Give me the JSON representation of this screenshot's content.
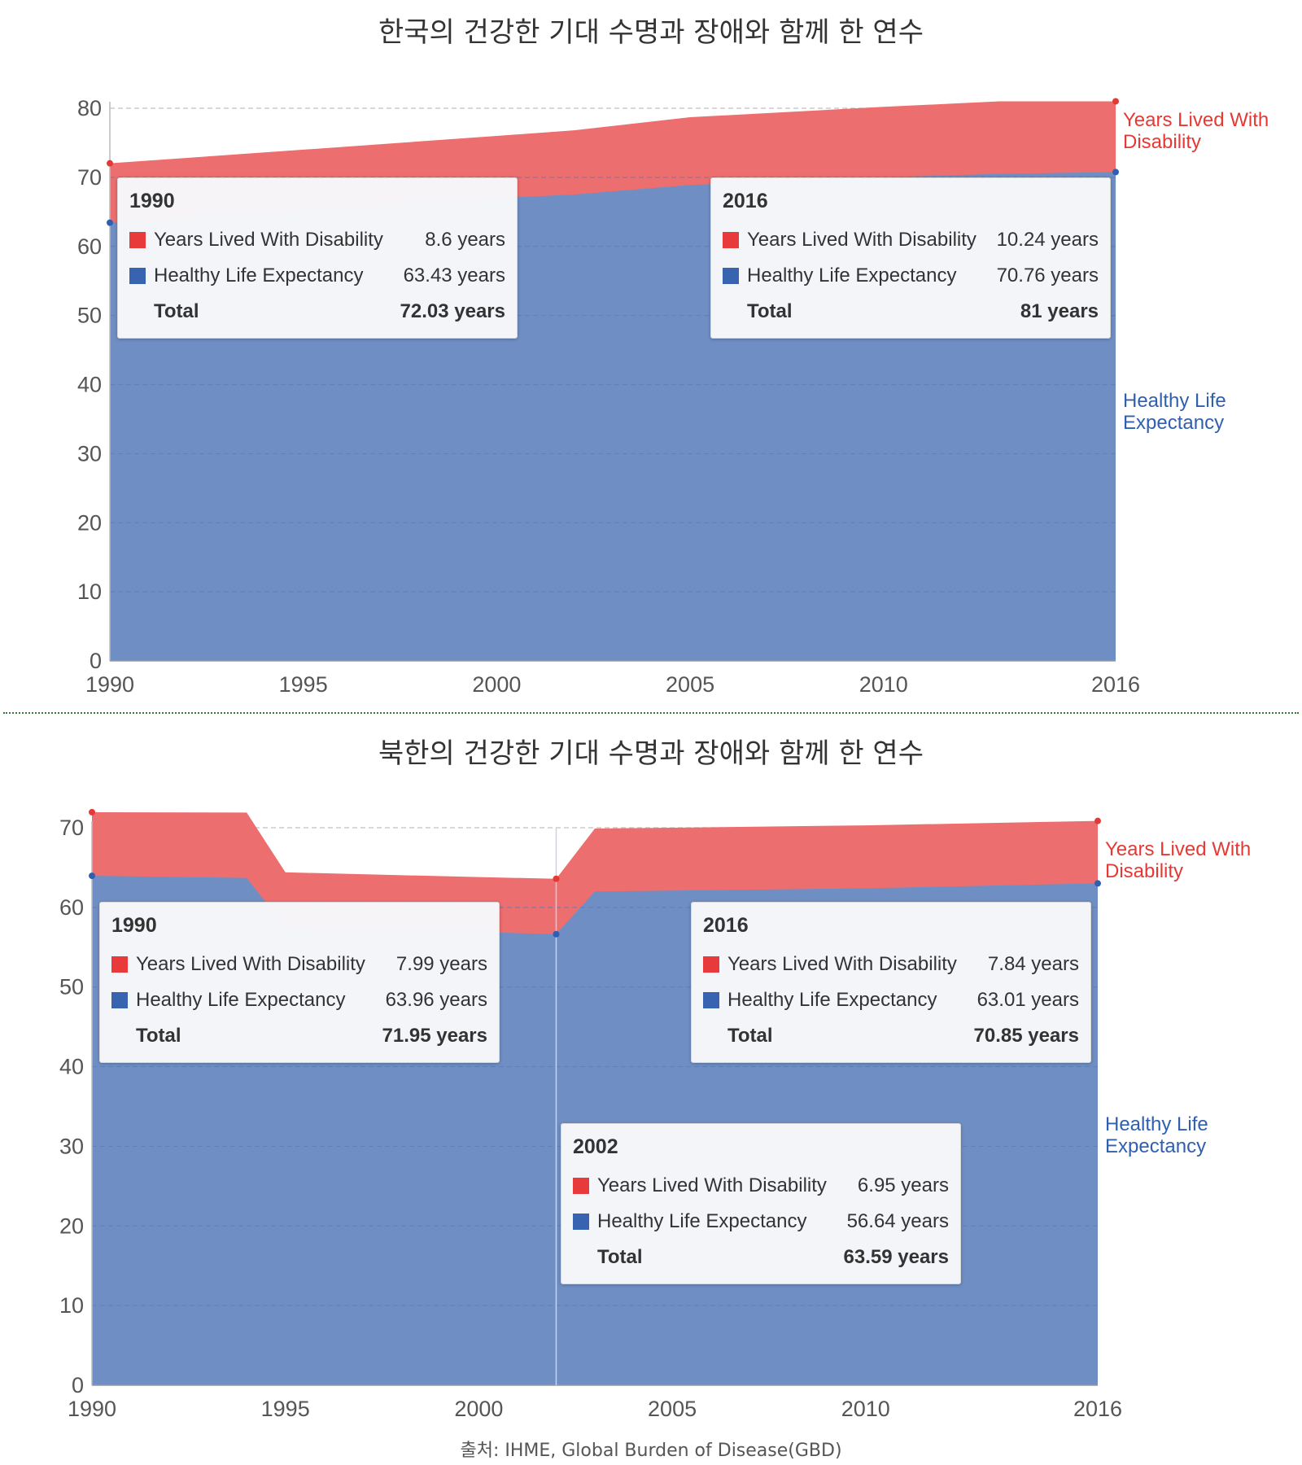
{
  "chart_data": [
    {
      "type": "area",
      "stacked": true,
      "title": "한국의 건강한 기대 수명과 장애와 함께 한 연수",
      "xlim": [
        1990,
        2016
      ],
      "ylim": [
        0,
        80
      ],
      "x_ticks": [
        "1990",
        "1995",
        "2000",
        "2005",
        "2010",
        "2016"
      ],
      "y_ticks": [
        "0",
        "10",
        "20",
        "30",
        "40",
        "50",
        "60",
        "70",
        "80"
      ],
      "grid": true,
      "x": [
        1990,
        1995,
        2000,
        2002,
        2005,
        2010,
        2013,
        2016
      ],
      "series": [
        {
          "name": "Healthy Life Expectancy",
          "color": "#6f8fc4",
          "label_color": "#2f5fb0",
          "values": [
            63.43,
            65.2,
            67.0,
            67.5,
            68.9,
            70.0,
            70.5,
            70.76
          ]
        },
        {
          "name": "Years Lived With Disability",
          "color": "#ed6e6e",
          "label_color": "#e53935",
          "values": [
            8.6,
            8.8,
            9.0,
            9.3,
            9.8,
            10.2,
            10.5,
            10.24
          ]
        }
      ],
      "series_label_lines": {
        "yld": [
          "Years Lived With",
          "Disability"
        ],
        "hle": [
          "Healthy Life",
          "Expectancy"
        ]
      },
      "tooltips": [
        {
          "year": "1990",
          "yld_label": "Years Lived With Disability",
          "yld_value": "8.6 years",
          "hle_label": "Healthy Life Expectancy",
          "hle_value": "63.43 years",
          "total_label": "Total",
          "total_value": "72.03 years"
        },
        {
          "year": "2016",
          "yld_label": "Years Lived With Disability",
          "yld_value": "10.24 years",
          "hle_label": "Healthy Life Expectancy",
          "hle_value": "70.76 years",
          "total_label": "Total",
          "total_value": "81 years"
        }
      ]
    },
    {
      "type": "area",
      "stacked": true,
      "title": "북한의 건강한 기대 수명과 장애와 함께 한 연수",
      "xlim": [
        1990,
        2016
      ],
      "ylim": [
        0,
        70
      ],
      "x_ticks": [
        "1990",
        "1995",
        "2000",
        "2005",
        "2010",
        "2016"
      ],
      "y_ticks": [
        "0",
        "10",
        "20",
        "30",
        "40",
        "50",
        "60",
        "70"
      ],
      "grid": true,
      "x": [
        1990,
        1994,
        1995,
        2000,
        2002,
        2003,
        2005,
        2010,
        2016
      ],
      "series": [
        {
          "name": "Healthy Life Expectancy",
          "color": "#6f8fc4",
          "label_color": "#2f5fb0",
          "values": [
            63.96,
            63.7,
            57.5,
            56.9,
            56.64,
            62.0,
            62.1,
            62.4,
            63.01
          ]
        },
        {
          "name": "Years Lived With Disability",
          "color": "#ed6e6e",
          "label_color": "#e53935",
          "values": [
            7.99,
            8.2,
            6.9,
            6.9,
            6.95,
            7.9,
            7.9,
            7.9,
            7.84
          ]
        }
      ],
      "series_label_lines": {
        "yld": [
          "Years Lived With",
          "Disability"
        ],
        "hle": [
          "Healthy Life",
          "Expectancy"
        ]
      },
      "tooltips": [
        {
          "year": "1990",
          "yld_label": "Years Lived With Disability",
          "yld_value": "7.99 years",
          "hle_label": "Healthy Life Expectancy",
          "hle_value": "63.96 years",
          "total_label": "Total",
          "total_value": "71.95 years"
        },
        {
          "year": "2016",
          "yld_label": "Years Lived With Disability",
          "yld_value": "7.84 years",
          "hle_label": "Healthy Life Expectancy",
          "hle_value": "63.01 years",
          "total_label": "Total",
          "total_value": "70.85 years"
        },
        {
          "year": "2002",
          "yld_label": "Years Lived With Disability",
          "yld_value": "6.95 years",
          "hle_label": "Healthy Life Expectancy",
          "hle_value": "56.64 years",
          "total_label": "Total",
          "total_value": "63.59 years"
        }
      ]
    }
  ],
  "source": "출처: IHME, Global Burden of Disease(GBD)"
}
